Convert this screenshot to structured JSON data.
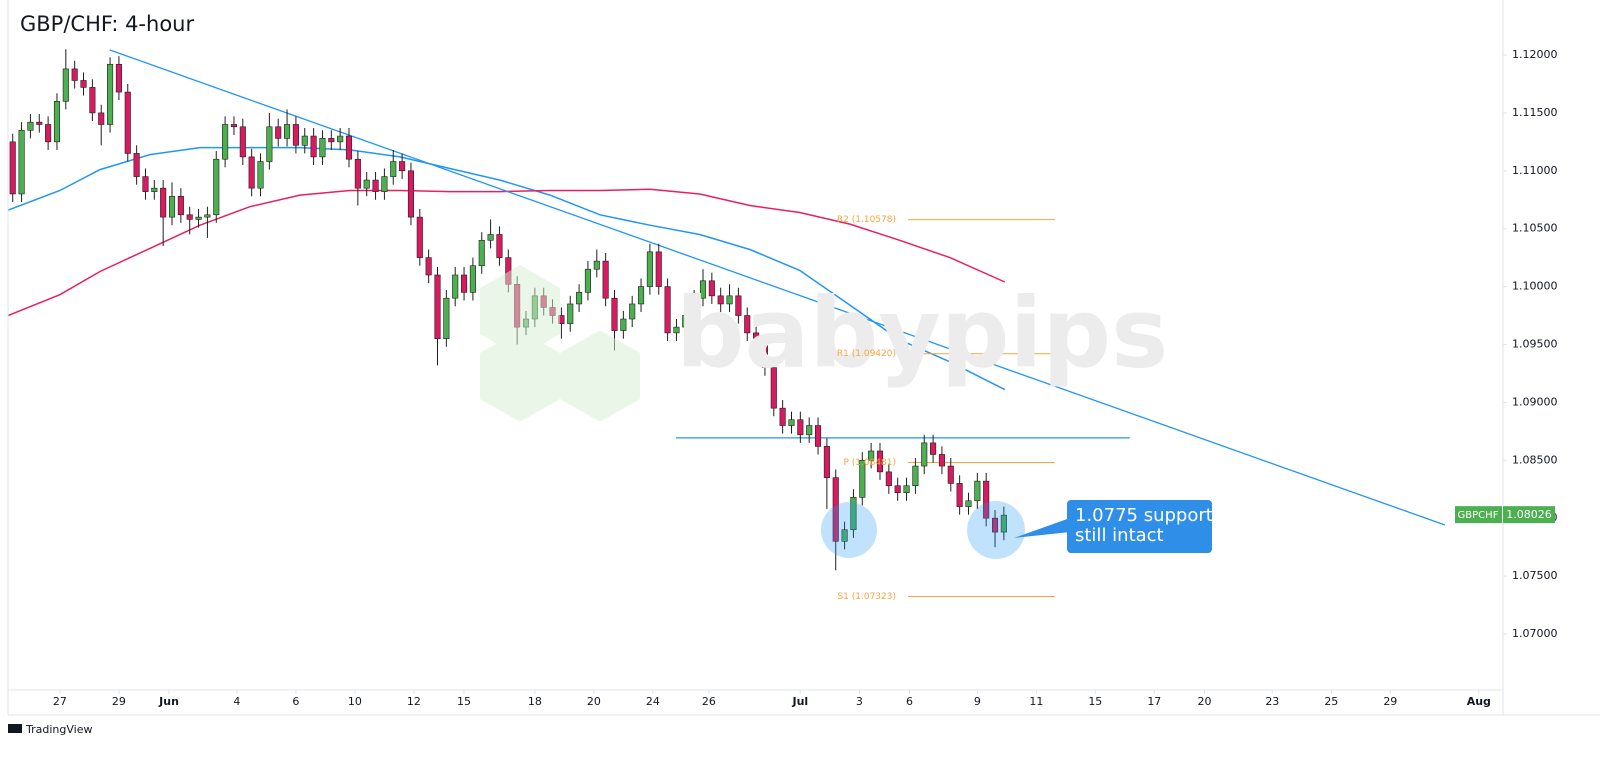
{
  "chart_data": {
    "type": "candlestick",
    "title": "GBP/CHF: 4-hour",
    "footer": "TradingView",
    "watermark": "babypips",
    "xlim": [
      -1.76,
      48.92
    ],
    "ylim": [
      1.06516,
      1.12475
    ],
    "grid": false,
    "up_color": "#4caf50",
    "down_color": "#d81b60",
    "xticks": [
      {
        "value": 0,
        "label": "27"
      },
      {
        "value": 2,
        "label": "29"
      },
      {
        "value": 3.7,
        "label": "Jun"
      },
      {
        "value": 6,
        "label": "4"
      },
      {
        "value": 8,
        "label": "6"
      },
      {
        "value": 10,
        "label": "10"
      },
      {
        "value": 12,
        "label": "12"
      },
      {
        "value": 13.7,
        "label": "15"
      },
      {
        "value": 16.1,
        "label": "18"
      },
      {
        "value": 18.1,
        "label": "20"
      },
      {
        "value": 20.1,
        "label": "24"
      },
      {
        "value": 22,
        "label": "26"
      },
      {
        "value": 25.1,
        "label": "Jul"
      },
      {
        "value": 27.1,
        "label": "3"
      },
      {
        "value": 28.8,
        "label": "6"
      },
      {
        "value": 31.1,
        "label": "9"
      },
      {
        "value": 33.1,
        "label": "11"
      },
      {
        "value": 35.1,
        "label": "15"
      },
      {
        "value": 37.1,
        "label": "17"
      },
      {
        "value": 38.8,
        "label": "20"
      },
      {
        "value": 41.1,
        "label": "23"
      },
      {
        "value": 43.1,
        "label": "25"
      },
      {
        "value": 45.1,
        "label": "29"
      },
      {
        "value": 48.1,
        "label": "Aug"
      }
    ],
    "yticks": [
      {
        "value": 1.07,
        "label": "1.07000"
      },
      {
        "value": 1.075,
        "label": "1.07500"
      },
      {
        "value": 1.08,
        "label": "1.08000"
      },
      {
        "value": 1.085,
        "label": "1.08500"
      },
      {
        "value": 1.09,
        "label": "1.09000"
      },
      {
        "value": 1.095,
        "label": "1.09500"
      },
      {
        "value": 1.1,
        "label": "1.10000"
      },
      {
        "value": 1.105,
        "label": "1.10500"
      },
      {
        "value": 1.11,
        "label": "1.11000"
      },
      {
        "value": 1.115,
        "label": "1.11500"
      },
      {
        "value": 1.12,
        "label": "1.12000"
      }
    ],
    "series": [
      {
        "name": "GBPCHF",
        "x": [
          -1.6,
          -1.3,
          -1.0,
          -0.7,
          -0.4,
          -0.1,
          0.2,
          0.5,
          0.8,
          1.1,
          1.4,
          1.7,
          2.0,
          2.3,
          2.6,
          2.9,
          3.2,
          3.5,
          3.8,
          4.1,
          4.4,
          4.7,
          5.0,
          5.3,
          5.6,
          5.9,
          6.2,
          6.5,
          6.8,
          7.1,
          7.4,
          7.7,
          8.0,
          8.3,
          8.6,
          8.9,
          9.2,
          9.5,
          9.8,
          10.1,
          10.4,
          10.7,
          11.0,
          11.3,
          11.6,
          11.9,
          12.2,
          12.5,
          12.8,
          13.1,
          13.4,
          13.7,
          14.0,
          14.3,
          14.6,
          14.9,
          15.2,
          15.5,
          15.8,
          16.1,
          16.4,
          16.7,
          17.0,
          17.3,
          17.6,
          17.9,
          18.2,
          18.5,
          18.8,
          19.1,
          19.4,
          19.7,
          20.0,
          20.3,
          20.6,
          20.9,
          21.2,
          21.5,
          21.8,
          22.1,
          22.4,
          22.7,
          23.0,
          23.3,
          23.6,
          23.9,
          24.2,
          24.5,
          24.8,
          25.1,
          25.4,
          25.7,
          26.0,
          26.3,
          26.6,
          26.9,
          27.2,
          27.5,
          27.8,
          28.1,
          28.4,
          28.7,
          29.0,
          29.3,
          29.6,
          29.9,
          30.2,
          30.5,
          30.8,
          31.1,
          31.4,
          31.7,
          32.0
        ],
        "open": [
          1.1125,
          1.108,
          1.1135,
          1.1142,
          1.114,
          1.1125,
          1.116,
          1.1188,
          1.1178,
          1.1172,
          1.115,
          1.114,
          1.1192,
          1.1168,
          1.1115,
          1.1095,
          1.1082,
          1.1085,
          1.106,
          1.1078,
          1.1062,
          1.1058,
          1.106,
          1.1062,
          1.111,
          1.114,
          1.1138,
          1.1112,
          1.1085,
          1.1108,
          1.1138,
          1.1128,
          1.114,
          1.1122,
          1.113,
          1.1112,
          1.1128,
          1.1125,
          1.113,
          1.111,
          1.1085,
          1.1092,
          1.1082,
          1.1095,
          1.1108,
          1.11,
          1.106,
          1.1025,
          1.101,
          1.0955,
          1.099,
          1.101,
          1.0995,
          1.1018,
          1.104,
          1.1045,
          1.1025,
          1.1002,
          1.0965,
          1.0972,
          1.0992,
          1.0982,
          1.0975,
          1.0968,
          1.0985,
          1.0995,
          1.1015,
          1.1022,
          1.099,
          1.0962,
          1.0972,
          1.0985,
          1.1,
          1.103,
          1.1,
          1.096,
          1.0965,
          1.0975,
          1.099,
          1.1005,
          1.0992,
          1.0985,
          1.0992,
          1.0975,
          1.096,
          1.0952,
          1.093,
          1.0895,
          1.088,
          1.0885,
          1.0872,
          1.088,
          1.0862,
          1.0835,
          1.078,
          1.079,
          1.0818,
          1.085,
          1.0858,
          1.084,
          1.0828,
          1.0822,
          1.0828,
          1.0845,
          1.0865,
          1.0855,
          1.0845,
          1.083,
          1.081,
          1.0815,
          1.0832,
          1.08,
          1.0788
        ],
        "high": [
          1.1132,
          1.1142,
          1.1149,
          1.1149,
          1.1147,
          1.1167,
          1.1205,
          1.1195,
          1.1185,
          1.1179,
          1.1157,
          1.1198,
          1.1199,
          1.1175,
          1.1122,
          1.1102,
          1.1092,
          1.1092,
          1.109,
          1.1085,
          1.1069,
          1.1067,
          1.1069,
          1.1117,
          1.1147,
          1.1147,
          1.1145,
          1.1119,
          1.1115,
          1.115,
          1.1145,
          1.1153,
          1.1147,
          1.1137,
          1.1137,
          1.1135,
          1.1135,
          1.1137,
          1.1137,
          1.1117,
          1.1099,
          1.1099,
          1.1102,
          1.1118,
          1.1115,
          1.1107,
          1.1067,
          1.1032,
          1.1017,
          1.0997,
          1.1017,
          1.1017,
          1.1025,
          1.1047,
          1.1058,
          1.1052,
          1.1032,
          1.1009,
          1.0979,
          1.0999,
          1.0999,
          1.0989,
          1.0982,
          1.0992,
          1.1002,
          1.1022,
          1.1032,
          1.1029,
          1.0997,
          1.0979,
          1.0992,
          1.1007,
          1.1037,
          1.1037,
          1.1007,
          1.0972,
          1.0982,
          1.0997,
          1.1015,
          1.1012,
          1.0999,
          1.1002,
          1.0999,
          1.0982,
          1.0967,
          1.0959,
          1.0937,
          1.0902,
          1.0892,
          1.0892,
          1.0887,
          1.0887,
          1.0869,
          1.0842,
          1.0797,
          1.0825,
          1.0857,
          1.0865,
          1.0865,
          1.0847,
          1.0835,
          1.0835,
          1.0852,
          1.0872,
          1.0872,
          1.0862,
          1.0852,
          1.0837,
          1.0822,
          1.0839,
          1.0839,
          1.0807,
          1.081
        ],
        "low": [
          1.1073,
          1.1073,
          1.1128,
          1.1133,
          1.1118,
          1.1118,
          1.1153,
          1.1171,
          1.1165,
          1.1143,
          1.1122,
          1.1133,
          1.1161,
          1.1108,
          1.1088,
          1.1075,
          1.1075,
          1.1035,
          1.1053,
          1.1055,
          1.1045,
          1.1051,
          1.1042,
          1.1055,
          1.1103,
          1.1131,
          1.1105,
          1.1078,
          1.1078,
          1.1101,
          1.1121,
          1.1121,
          1.1115,
          1.1115,
          1.1105,
          1.1105,
          1.1118,
          1.1118,
          1.1103,
          1.107,
          1.1078,
          1.1075,
          1.1075,
          1.1088,
          1.1093,
          1.1053,
          1.1018,
          1.1003,
          1.0932,
          1.0948,
          1.0983,
          1.0988,
          1.0988,
          1.1011,
          1.1033,
          1.1018,
          1.0995,
          1.095,
          1.0958,
          1.0965,
          1.0975,
          1.0968,
          1.0955,
          1.0961,
          1.0978,
          1.0988,
          1.1008,
          1.0983,
          1.0945,
          1.0955,
          1.0965,
          1.0978,
          1.0993,
          1.0993,
          1.0953,
          1.0953,
          1.0958,
          1.0968,
          1.0983,
          1.0985,
          1.0978,
          1.0978,
          1.0968,
          1.0953,
          1.0945,
          1.0923,
          1.0888,
          1.0873,
          1.0873,
          1.0865,
          1.0865,
          1.0855,
          1.0808,
          1.0755,
          1.0773,
          1.0783,
          1.0811,
          1.0843,
          1.0833,
          1.0821,
          1.0815,
          1.0815,
          1.0821,
          1.0838,
          1.0848,
          1.0838,
          1.0823,
          1.0803,
          1.0803,
          1.0808,
          1.0793,
          1.0775,
          1.0781
        ],
        "close": [
          1.108,
          1.1135,
          1.1142,
          1.114,
          1.1125,
          1.116,
          1.1188,
          1.1178,
          1.1172,
          1.115,
          1.114,
          1.1192,
          1.1168,
          1.1115,
          1.1095,
          1.1082,
          1.1085,
          1.106,
          1.1078,
          1.1062,
          1.1058,
          1.106,
          1.1062,
          1.111,
          1.114,
          1.1138,
          1.1112,
          1.1085,
          1.1108,
          1.1138,
          1.1128,
          1.114,
          1.1122,
          1.113,
          1.1112,
          1.1128,
          1.1125,
          1.113,
          1.111,
          1.1085,
          1.1092,
          1.1082,
          1.1095,
          1.1108,
          1.11,
          1.106,
          1.1025,
          1.101,
          1.0955,
          1.099,
          1.101,
          1.0995,
          1.1018,
          1.104,
          1.1045,
          1.1025,
          1.1002,
          1.0965,
          1.0972,
          1.0992,
          1.0982,
          1.0975,
          1.0968,
          1.0985,
          1.0995,
          1.1015,
          1.1022,
          1.099,
          1.0962,
          1.0972,
          1.0985,
          1.1,
          1.103,
          1.1,
          1.096,
          1.0965,
          1.0975,
          1.099,
          1.1005,
          1.0992,
          1.0985,
          1.0992,
          1.0975,
          1.096,
          1.0952,
          1.093,
          1.0895,
          1.088,
          1.0885,
          1.0872,
          1.088,
          1.0862,
          1.0835,
          1.078,
          1.079,
          1.0818,
          1.085,
          1.0858,
          1.084,
          1.0828,
          1.0822,
          1.0828,
          1.0845,
          1.0865,
          1.0855,
          1.0845,
          1.083,
          1.081,
          1.0815,
          1.0832,
          1.08,
          1.0788,
          1.08026
        ]
      }
    ],
    "moving_averages": {
      "x": [
        -1.76,
        0,
        1.36,
        3.05,
        4.75,
        6.44,
        8.14,
        9.83,
        11.53,
        13.22,
        14.92,
        16.61,
        18.31,
        20.0,
        21.69,
        23.39,
        25.08,
        26.78,
        28.47,
        30.17,
        32.03
      ],
      "lines": [
        {
          "color": "#2196f3",
          "values": [
            1.1066,
            1.1083,
            1.1101,
            1.1114,
            1.112,
            1.112,
            1.112,
            1.1118,
            1.1112,
            1.1102,
            1.1092,
            1.1079,
            1.1062,
            1.1053,
            1.1045,
            1.1032,
            1.1014,
            1.0984,
            1.0954,
            1.0935,
            1.0911
          ]
        },
        {
          "color": "#e91e63",
          "values": [
            1.0975,
            1.0993,
            1.1013,
            1.1033,
            1.1053,
            1.1069,
            1.1079,
            1.1083,
            1.1083,
            1.1082,
            1.1082,
            1.1083,
            1.1083,
            1.1084,
            1.108,
            1.107,
            1.1064,
            1.1054,
            1.104,
            1.1025,
            1.1004
          ]
        }
      ]
    },
    "trendlines": [
      {
        "color": "#2196f3",
        "x": [
          1.69,
          46.95
        ],
        "y": [
          1.12043,
          1.07941
        ]
      },
      {
        "color": "#2196f3",
        "x": [
          20.88,
          36.27
        ],
        "y": [
          1.08693,
          1.08693
        ]
      }
    ],
    "pivots": {
      "color": "#f7a43b",
      "x": [
        28.75,
        33.73
      ],
      "levels": [
        {
          "value": 1.10578,
          "label": "R2 (1.10578)"
        },
        {
          "value": 1.0942,
          "label": "R1 (1.09420)"
        },
        {
          "value": 1.08481,
          "label": "P (1.08481)"
        },
        {
          "value": 1.07323,
          "label": "S1 (1.07323)"
        }
      ]
    },
    "annotation": [
      "1.0775 support",
      "still intact"
    ]
  }
}
